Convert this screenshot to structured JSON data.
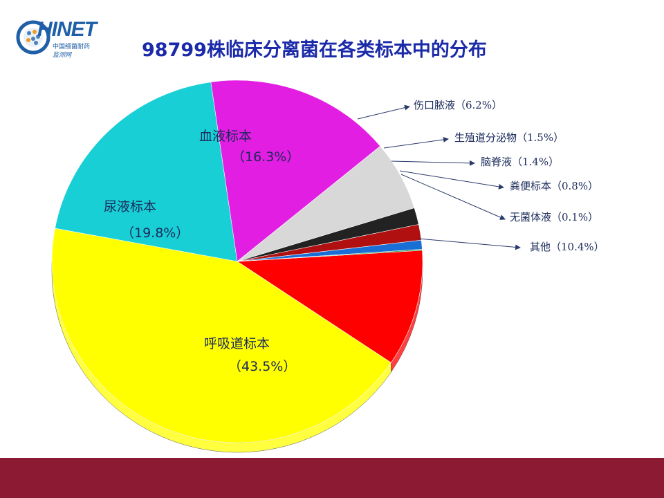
{
  "logo": {
    "wordmark": "HINET",
    "subtitle_line1": "中国细菌耐药",
    "subtitle_line2": "监测网"
  },
  "title": "98799株临床分离菌在各类标本中的分布",
  "colors": {
    "title": "#1a2aa8",
    "footer": "#8c1a32",
    "label_text": "#1a2a5a"
  },
  "chart_data": {
    "type": "pie",
    "title": "98799株临床分离菌在各类标本中的分布",
    "slices": [
      {
        "label": "其他",
        "display": "其他（10.4%）",
        "value": 10.4,
        "color": "#ff0000"
      },
      {
        "label": "呼吸道标本",
        "display_line1": "呼吸道标本",
        "display_line2": "（43.5%）",
        "value": 43.5,
        "color": "#ffff00"
      },
      {
        "label": "尿液标本",
        "display_line1": "尿液标本",
        "display_line2": "（19.8%）",
        "value": 19.8,
        "color": "#19cfd6"
      },
      {
        "label": "血液标本",
        "display_line1": "血液标本",
        "display_line2": "（16.3%）",
        "value": 16.3,
        "color": "#e21ee2"
      },
      {
        "label": "伤口脓液",
        "display": "伤口脓液（6.2%）",
        "value": 6.2,
        "color": "#d8d8d8"
      },
      {
        "label": "生殖道分泌物",
        "display": "生殖道分泌物（1.5%）",
        "value": 1.5,
        "color": "#222222"
      },
      {
        "label": "脑脊液",
        "display": "脑脊液（1.4%）",
        "value": 1.4,
        "color": "#b01010"
      },
      {
        "label": "粪便标本",
        "display": "粪便标本（0.8%）",
        "value": 0.8,
        "color": "#1a6fd6"
      },
      {
        "label": "无菌体液",
        "display": "无菌体液（0.1%）",
        "value": 0.1,
        "color": "#2aa84a"
      }
    ],
    "legend": "callouts"
  }
}
